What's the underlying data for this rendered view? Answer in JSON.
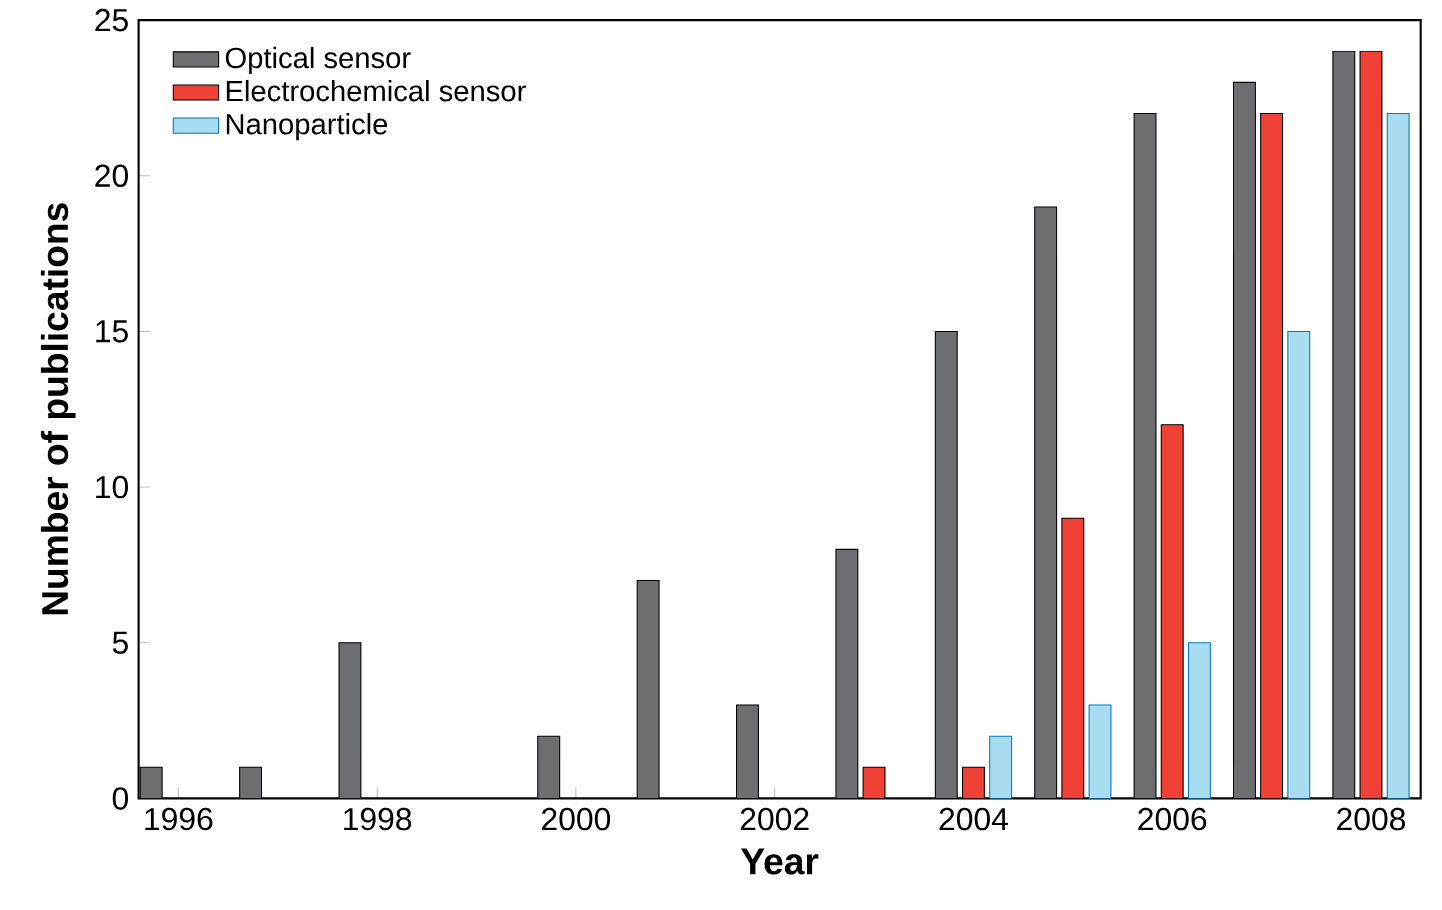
{
  "chart_data": {
    "type": "bar",
    "xlabel": "Year",
    "ylabel": "Number of publications",
    "x": [
      1996,
      1997,
      1998,
      1999,
      2000,
      2001,
      2002,
      2003,
      2004,
      2005,
      2006,
      2007,
      2008
    ],
    "series": [
      {
        "name": "Optical sensor",
        "color": "#6d6e71",
        "values": [
          1,
          1,
          5,
          null,
          2,
          7,
          3,
          8,
          15,
          19,
          22,
          23,
          24
        ]
      },
      {
        "name": "Electrochemical sensor",
        "color": "#ef4136",
        "values": [
          null,
          null,
          null,
          null,
          null,
          null,
          null,
          1,
          1,
          9,
          12,
          22,
          24
        ]
      },
      {
        "name": "Nanoparticle",
        "color": "#a8dcf0",
        "values": [
          null,
          null,
          null,
          null,
          null,
          null,
          null,
          null,
          2,
          3,
          5,
          15,
          22
        ]
      }
    ],
    "xlim": [
      1995.6,
      2008.5
    ],
    "ylim": [
      0,
      25
    ],
    "xticks": [
      1996,
      1998,
      2000,
      2002,
      2004,
      2006,
      2008
    ],
    "yticks": [
      0,
      5,
      10,
      15,
      20,
      25
    ],
    "grid": false,
    "legend": "top left"
  }
}
